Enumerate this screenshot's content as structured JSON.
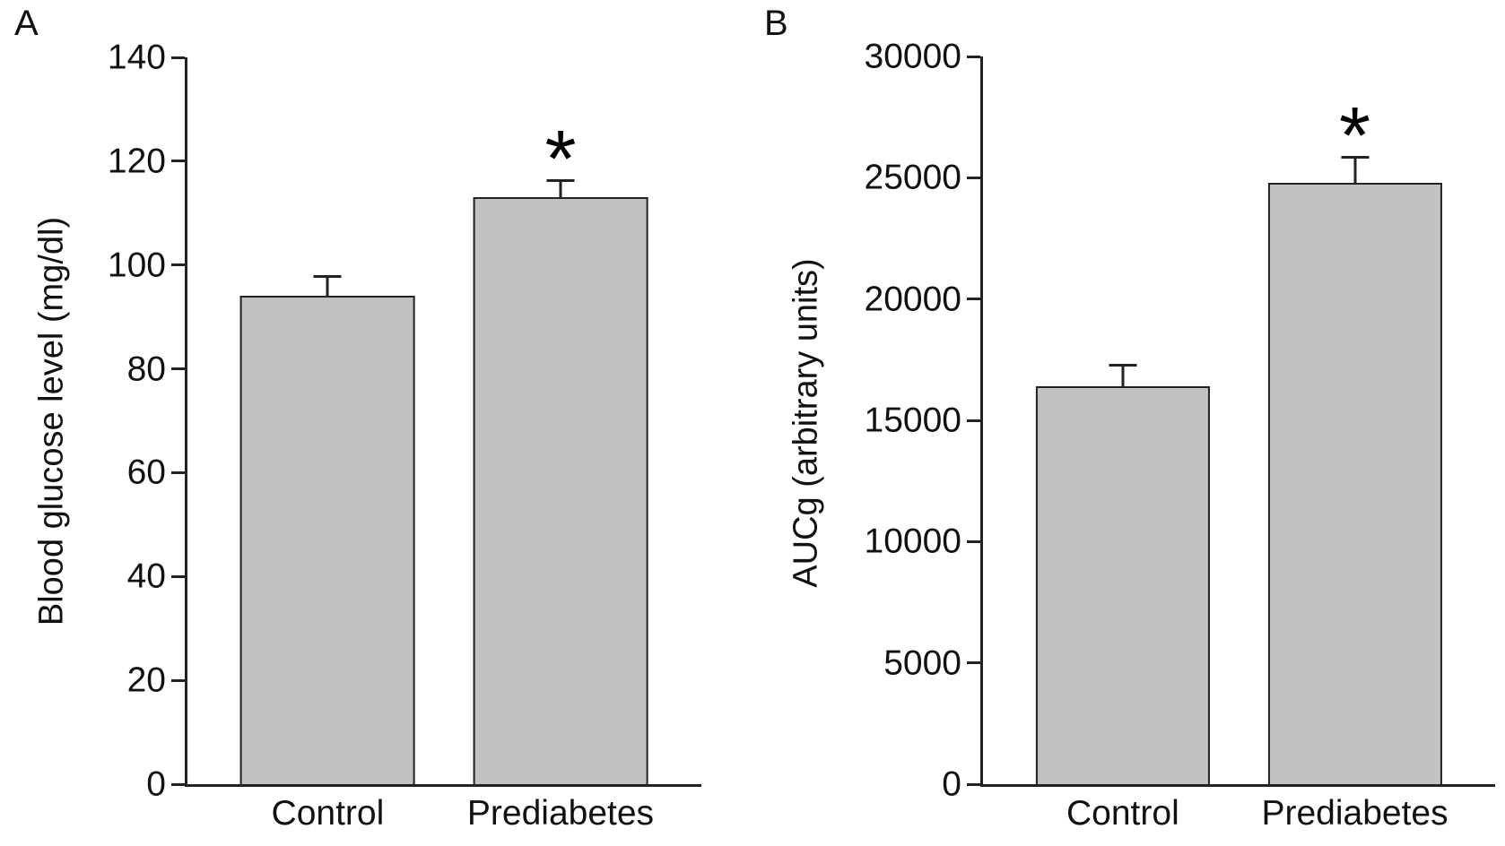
{
  "style": {
    "bar_fill": "#c2c2c2",
    "axis_color": "#222222",
    "background": "#ffffff"
  },
  "chart_data": [
    {
      "type": "bar",
      "panel_label": "A",
      "ylabel": "Blood glucose level (mg/dl)",
      "xlabel": "",
      "categories": [
        "Control",
        "Prediabetes"
      ],
      "values": [
        94,
        113
      ],
      "error_upper": [
        3.5,
        3
      ],
      "significance": [
        "",
        "*"
      ],
      "ylim": [
        0,
        140
      ],
      "yticks": [
        0,
        20,
        40,
        60,
        80,
        100,
        120,
        140
      ],
      "legend": "none",
      "grid": false
    },
    {
      "type": "bar",
      "panel_label": "B",
      "ylabel": "AUCg (arbitrary units)",
      "xlabel": "",
      "categories": [
        "Control",
        "Prediabetes"
      ],
      "values": [
        16400,
        24800
      ],
      "error_upper": [
        800,
        1000
      ],
      "significance": [
        "",
        "*"
      ],
      "ylim": [
        0,
        30000
      ],
      "yticks": [
        0,
        5000,
        10000,
        15000,
        20000,
        25000,
        30000
      ],
      "legend": "none",
      "grid": false
    }
  ]
}
